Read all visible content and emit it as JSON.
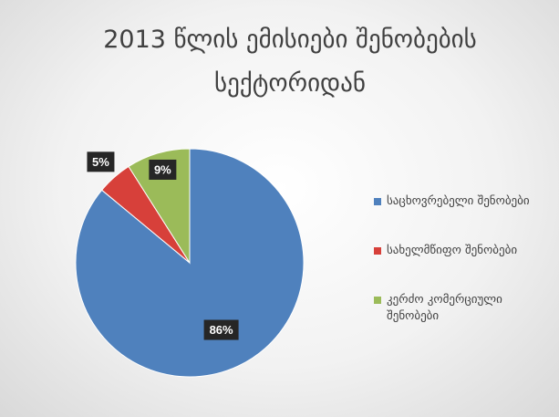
{
  "chart_data": {
    "type": "pie",
    "title": [
      "2013 წლის ემისიები შენობების",
      "სექტორიდან"
    ],
    "categories": [
      "საცხოვრებელი შენობები",
      "სახელმწიფო შენობები",
      "კერძო კომერციული შენობები"
    ],
    "values": [
      86,
      5,
      9
    ],
    "value_labels": [
      "86%",
      "5%",
      "9%"
    ],
    "colors": [
      "#4f81bd",
      "#d7403a",
      "#9bbb59"
    ]
  }
}
